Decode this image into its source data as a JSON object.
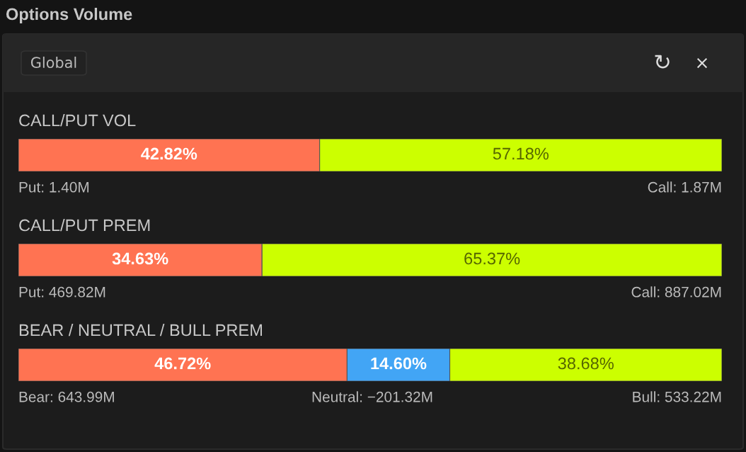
{
  "chart_data": [
    {
      "type": "other",
      "title": "Options Volume",
      "annotations": [
        "Global",
        "↻",
        "×"
      ]
    },
    {
      "type": "bar",
      "orientation": "horizontal",
      "stacked": true,
      "title": "CALL/PUT VOL",
      "categories": [
        null
      ],
      "xlim": [
        0,
        100
      ],
      "tick_labels": false,
      "series": [
        {
          "color": "#ff7352",
          "values": [
            42.82
          ],
          "value_labels": [
            "42.82%"
          ]
        },
        {
          "color": "#ccff00",
          "values": [
            57.18
          ],
          "value_labels": [
            "57.18%"
          ]
        }
      ],
      "annotations": [
        "Put: 1.40M",
        "Call: 1.87M"
      ]
    },
    {
      "type": "bar",
      "orientation": "horizontal",
      "stacked": true,
      "title": "CALL/PUT PREM",
      "categories": [
        null
      ],
      "xlim": [
        0,
        100
      ],
      "tick_labels": false,
      "series": [
        {
          "color": "#ff7352",
          "values": [
            34.63
          ],
          "value_labels": [
            "34.63%"
          ]
        },
        {
          "color": "#ccff00",
          "values": [
            65.37
          ],
          "value_labels": [
            "65.37%"
          ]
        }
      ],
      "annotations": [
        "Put: 469.82M",
        "Call: 887.02M"
      ]
    },
    {
      "type": "bar",
      "orientation": "horizontal",
      "stacked": true,
      "title": "BEAR / NEUTRAL / BULL PREM",
      "categories": [
        null
      ],
      "xlim": [
        0,
        100
      ],
      "tick_labels": false,
      "series": [
        {
          "color": "#ff7352",
          "values": [
            46.72
          ],
          "value_labels": [
            "46.72%"
          ]
        },
        {
          "color": "#42a5f5",
          "values": [
            14.6
          ],
          "value_labels": [
            "14.60%"
          ]
        },
        {
          "color": "#ccff00",
          "values": [
            38.68
          ],
          "value_labels": [
            "38.68%"
          ]
        }
      ],
      "annotations": [
        "Bear: 643.99M",
        "Neutral: −201.32M",
        "Bull: 533.22M"
      ]
    }
  ]
}
